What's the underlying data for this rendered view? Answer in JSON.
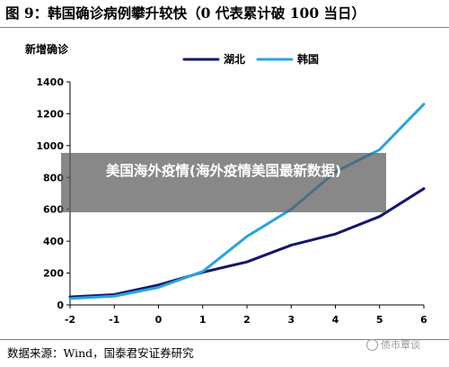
{
  "figure_title": "图 9：韩国确诊病例攀升较快（0 代表累计破 100 当日）",
  "source": "数据来源：Wind，国泰君安证券研究",
  "overlay_caption": "美国海外疫情(海外疫情美国最新数据)",
  "watermark": "债市覃谈",
  "chart_data": {
    "type": "line",
    "title": "",
    "ylabel": "新增确诊",
    "xlabel": "",
    "x": [
      -2,
      -1,
      0,
      1,
      2,
      3,
      4,
      5,
      6
    ],
    "xlim": [
      -2,
      6
    ],
    "ylim": [
      0,
      1400
    ],
    "yticks": [
      0,
      200,
      400,
      600,
      800,
      1000,
      1200,
      1400
    ],
    "grid": false,
    "legend_position": "top-right",
    "series": [
      {
        "name": "湖北",
        "color": "#14166b",
        "values": [
          50,
          65,
          125,
          205,
          270,
          375,
          445,
          555,
          730
        ]
      },
      {
        "name": "韩国",
        "color": "#2aa3e0",
        "values": [
          40,
          55,
          110,
          210,
          430,
          600,
          835,
          975,
          1260
        ]
      }
    ]
  }
}
